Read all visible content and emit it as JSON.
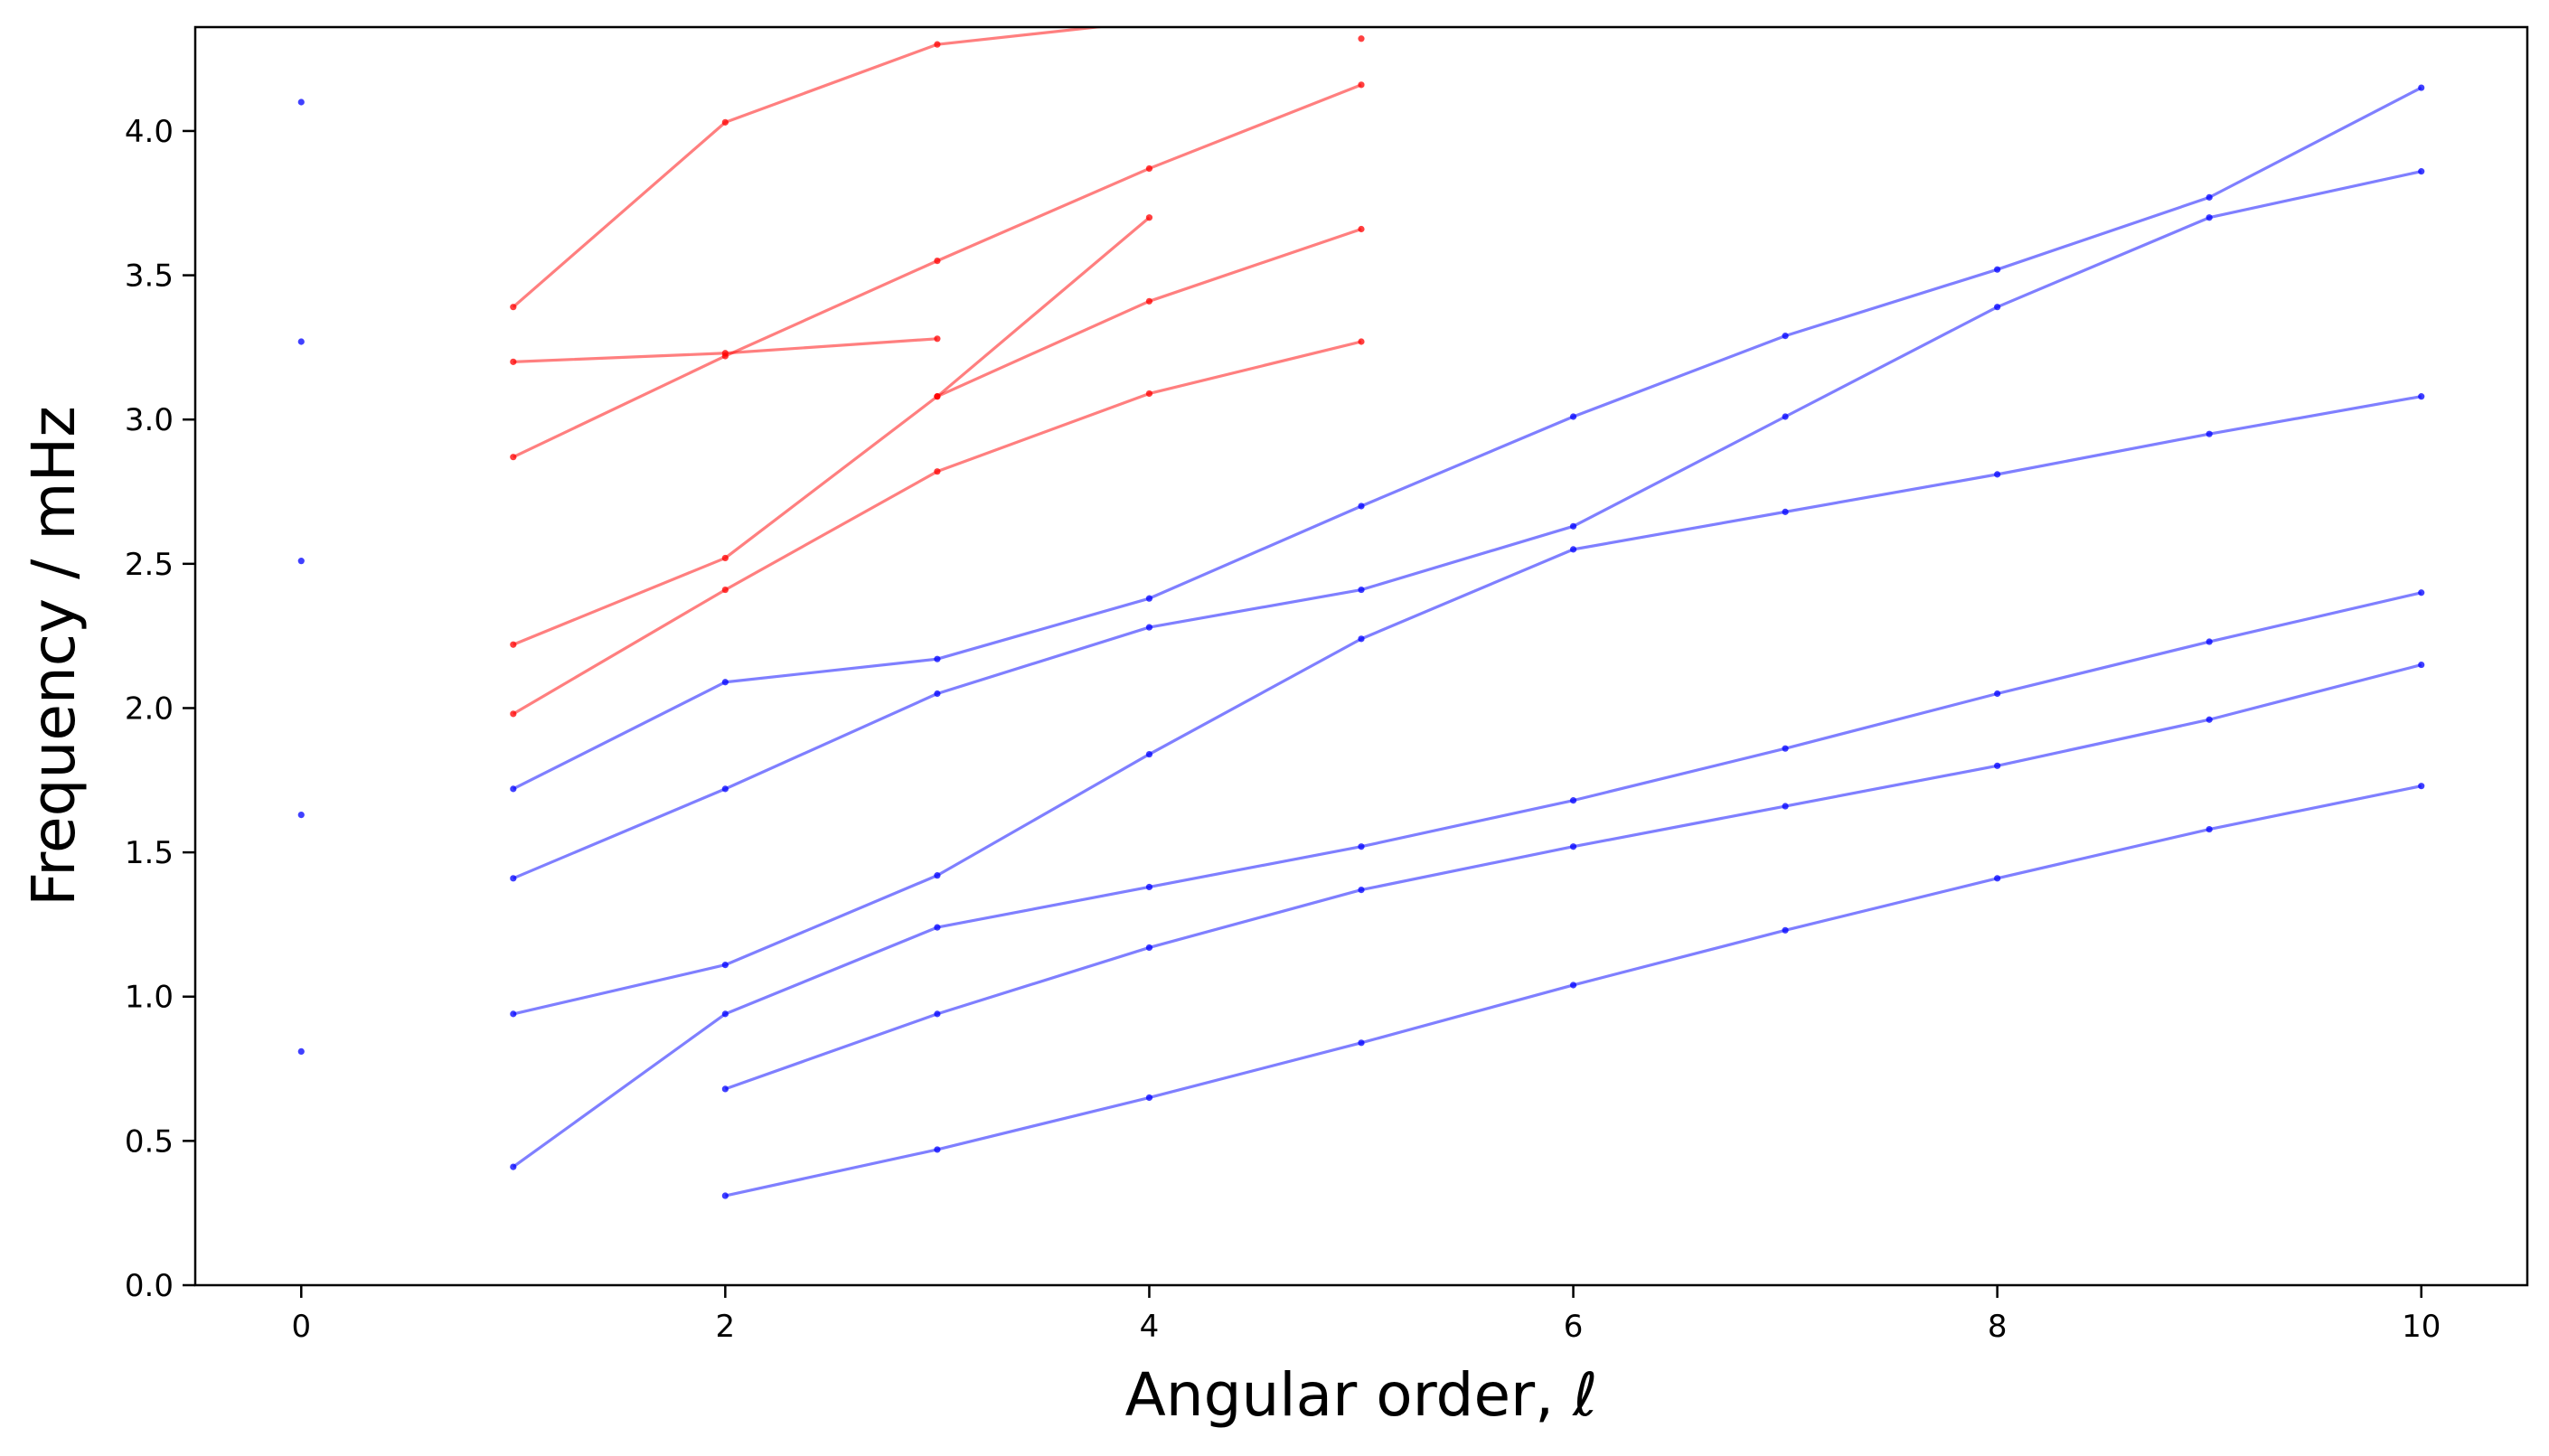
{
  "chart_data": {
    "type": "line",
    "title": "",
    "xlabel": "Angular order, ℓ",
    "ylabel": "Frequency / mHz",
    "xlim": [
      -0.5,
      10.5
    ],
    "ylim": [
      0.0,
      4.36
    ],
    "xticks": [
      0,
      2,
      4,
      6,
      8,
      10
    ],
    "xtick_labels": [
      "0",
      "2",
      "4",
      "6",
      "8",
      "10"
    ],
    "yticks": [
      0.0,
      0.5,
      1.0,
      1.5,
      2.0,
      2.5,
      3.0,
      3.5,
      4.0
    ],
    "ytick_labels": [
      "0.0",
      "0.5",
      "1.0",
      "1.5",
      "2.0",
      "2.5",
      "3.0",
      "3.5",
      "4.0"
    ],
    "grid": false,
    "legend": "none",
    "colors": {
      "red": "#ff0000",
      "blue": "#0000ff",
      "line_opacity": 0.5
    },
    "series": [
      {
        "color": "red",
        "points": [
          [
            1,
            3.39
          ],
          [
            2,
            4.03
          ],
          [
            3,
            4.3
          ],
          [
            4,
            4.38
          ]
        ]
      },
      {
        "color": "red",
        "points": [
          [
            5,
            4.32
          ]
        ]
      },
      {
        "color": "red",
        "points": [
          [
            1,
            3.2
          ],
          [
            2,
            3.23
          ],
          [
            3,
            3.28
          ]
        ]
      },
      {
        "color": "red",
        "points": [
          [
            1,
            2.87
          ],
          [
            2,
            3.22
          ],
          [
            3,
            3.55
          ],
          [
            4,
            3.87
          ],
          [
            5,
            4.16
          ]
        ]
      },
      {
        "color": "red",
        "points": [
          [
            3,
            3.08
          ],
          [
            4,
            3.7
          ]
        ]
      },
      {
        "color": "red",
        "points": [
          [
            1,
            2.22
          ],
          [
            2,
            2.52
          ],
          [
            3,
            3.08
          ],
          [
            4,
            3.41
          ],
          [
            5,
            3.66
          ]
        ]
      },
      {
        "color": "red",
        "points": [
          [
            1,
            1.98
          ],
          [
            2,
            2.41
          ],
          [
            3,
            2.82
          ],
          [
            4,
            3.09
          ],
          [
            5,
            3.27
          ]
        ]
      },
      {
        "color": "blue",
        "points": [
          [
            0,
            4.1
          ]
        ]
      },
      {
        "color": "blue",
        "points": [
          [
            0,
            3.27
          ]
        ]
      },
      {
        "color": "blue",
        "points": [
          [
            0,
            2.51
          ]
        ]
      },
      {
        "color": "blue",
        "points": [
          [
            0,
            1.63
          ]
        ]
      },
      {
        "color": "blue",
        "points": [
          [
            0,
            0.81
          ]
        ]
      },
      {
        "color": "blue",
        "points": [
          [
            1,
            1.72
          ],
          [
            2,
            2.09
          ],
          [
            3,
            2.17
          ],
          [
            4,
            2.38
          ],
          [
            5,
            2.7
          ],
          [
            6,
            3.01
          ],
          [
            7,
            3.29
          ],
          [
            8,
            3.52
          ],
          [
            9,
            3.77
          ],
          [
            10,
            4.15
          ]
        ]
      },
      {
        "color": "blue",
        "points": [
          [
            1,
            1.41
          ],
          [
            2,
            1.72
          ],
          [
            3,
            2.05
          ],
          [
            4,
            2.28
          ],
          [
            5,
            2.41
          ],
          [
            6,
            2.63
          ],
          [
            7,
            3.01
          ],
          [
            8,
            3.39
          ],
          [
            9,
            3.7
          ],
          [
            10,
            3.86
          ]
        ]
      },
      {
        "color": "blue",
        "points": [
          [
            1,
            0.94
          ],
          [
            2,
            1.11
          ],
          [
            3,
            1.42
          ],
          [
            4,
            1.84
          ],
          [
            5,
            2.24
          ],
          [
            6,
            2.55
          ],
          [
            7,
            2.68
          ],
          [
            8,
            2.81
          ],
          [
            9,
            2.95
          ],
          [
            10,
            3.08
          ]
        ]
      },
      {
        "color": "blue",
        "points": [
          [
            1,
            0.41
          ],
          [
            2,
            0.94
          ],
          [
            3,
            1.24
          ],
          [
            4,
            1.38
          ],
          [
            5,
            1.52
          ],
          [
            6,
            1.68
          ],
          [
            7,
            1.86
          ],
          [
            8,
            2.05
          ],
          [
            9,
            2.23
          ],
          [
            10,
            2.4
          ]
        ]
      },
      {
        "color": "blue",
        "points": [
          [
            2,
            0.68
          ],
          [
            3,
            0.94
          ],
          [
            4,
            1.17
          ],
          [
            5,
            1.37
          ],
          [
            6,
            1.52
          ],
          [
            7,
            1.66
          ],
          [
            8,
            1.8
          ],
          [
            9,
            1.96
          ],
          [
            10,
            2.15
          ]
        ]
      },
      {
        "color": "blue",
        "points": [
          [
            2,
            0.31
          ],
          [
            3,
            0.47
          ],
          [
            4,
            0.65
          ],
          [
            5,
            0.84
          ],
          [
            6,
            1.04
          ],
          [
            7,
            1.23
          ],
          [
            8,
            1.41
          ],
          [
            9,
            1.58
          ],
          [
            10,
            1.73
          ]
        ]
      }
    ]
  }
}
